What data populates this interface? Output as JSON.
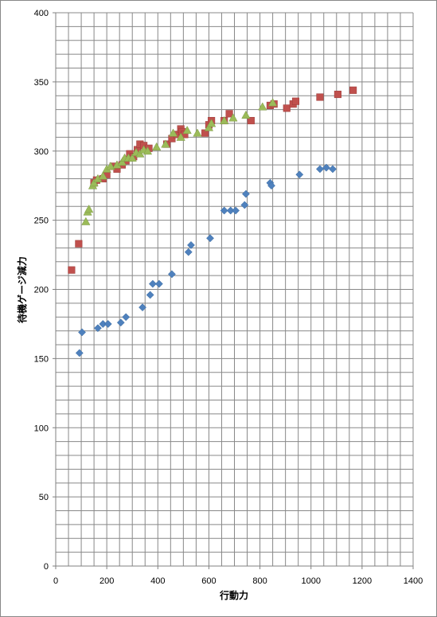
{
  "chart_data": {
    "type": "scatter",
    "xlabel": "行動力",
    "ylabel": "待機ゲージ減力",
    "xlim": [
      0,
      1400
    ],
    "ylim": [
      0,
      400
    ],
    "x_ticks": [
      "0",
      "200",
      "400",
      "600",
      "800",
      "1000",
      "1200",
      "1400"
    ],
    "y_ticks": [
      "0",
      "50",
      "100",
      "150",
      "200",
      "250",
      "300",
      "350",
      "400"
    ],
    "grid": true,
    "minor_grid": true,
    "legend": "none",
    "series": [
      {
        "marker": "diamond",
        "color": "#4f81bd",
        "points": [
          [
            93,
            154
          ],
          [
            103,
            169
          ],
          [
            165,
            172
          ],
          [
            185,
            175
          ],
          [
            205,
            175
          ],
          [
            255,
            176
          ],
          [
            275,
            180
          ],
          [
            340,
            187
          ],
          [
            370,
            196
          ],
          [
            380,
            204
          ],
          [
            405,
            204
          ],
          [
            455,
            211
          ],
          [
            520,
            227
          ],
          [
            530,
            232
          ],
          [
            605,
            237
          ],
          [
            660,
            257
          ],
          [
            685,
            257
          ],
          [
            705,
            257
          ],
          [
            740,
            261
          ],
          [
            745,
            269
          ],
          [
            840,
            277
          ],
          [
            845,
            275
          ],
          [
            955,
            283
          ],
          [
            1035,
            287
          ],
          [
            1060,
            288
          ],
          [
            1085,
            287
          ]
        ]
      },
      {
        "marker": "square",
        "color": "#c0504d",
        "points": [
          [
            62,
            214
          ],
          [
            90,
            233
          ],
          [
            150,
            277
          ],
          [
            160,
            279
          ],
          [
            185,
            280
          ],
          [
            200,
            283
          ],
          [
            225,
            289
          ],
          [
            240,
            287
          ],
          [
            260,
            290
          ],
          [
            275,
            293
          ],
          [
            290,
            298
          ],
          [
            305,
            296
          ],
          [
            320,
            301
          ],
          [
            330,
            305
          ],
          [
            345,
            304
          ],
          [
            365,
            302
          ],
          [
            435,
            305
          ],
          [
            455,
            309
          ],
          [
            475,
            312
          ],
          [
            490,
            316
          ],
          [
            495,
            314
          ],
          [
            505,
            312
          ],
          [
            585,
            313
          ],
          [
            600,
            319
          ],
          [
            610,
            322
          ],
          [
            660,
            322
          ],
          [
            680,
            327
          ],
          [
            765,
            322
          ],
          [
            840,
            333
          ],
          [
            855,
            334
          ],
          [
            905,
            331
          ],
          [
            930,
            334
          ],
          [
            940,
            336
          ],
          [
            1035,
            339
          ],
          [
            1105,
            341
          ],
          [
            1165,
            344
          ]
        ]
      },
      {
        "marker": "triangle",
        "color": "#9bbb59",
        "points": [
          [
            118,
            249
          ],
          [
            125,
            256
          ],
          [
            130,
            258
          ],
          [
            145,
            275
          ],
          [
            150,
            277
          ],
          [
            165,
            280
          ],
          [
            185,
            282
          ],
          [
            200,
            287
          ],
          [
            215,
            289
          ],
          [
            240,
            290
          ],
          [
            260,
            292
          ],
          [
            270,
            295
          ],
          [
            285,
            295
          ],
          [
            300,
            295
          ],
          [
            315,
            299
          ],
          [
            330,
            298
          ],
          [
            345,
            301
          ],
          [
            360,
            300
          ],
          [
            395,
            303
          ],
          [
            430,
            305
          ],
          [
            460,
            313
          ],
          [
            490,
            310
          ],
          [
            515,
            315
          ],
          [
            555,
            313
          ],
          [
            600,
            317
          ],
          [
            610,
            320
          ],
          [
            660,
            322
          ],
          [
            695,
            324
          ],
          [
            745,
            326
          ],
          [
            810,
            332
          ],
          [
            850,
            335
          ]
        ]
      }
    ]
  }
}
